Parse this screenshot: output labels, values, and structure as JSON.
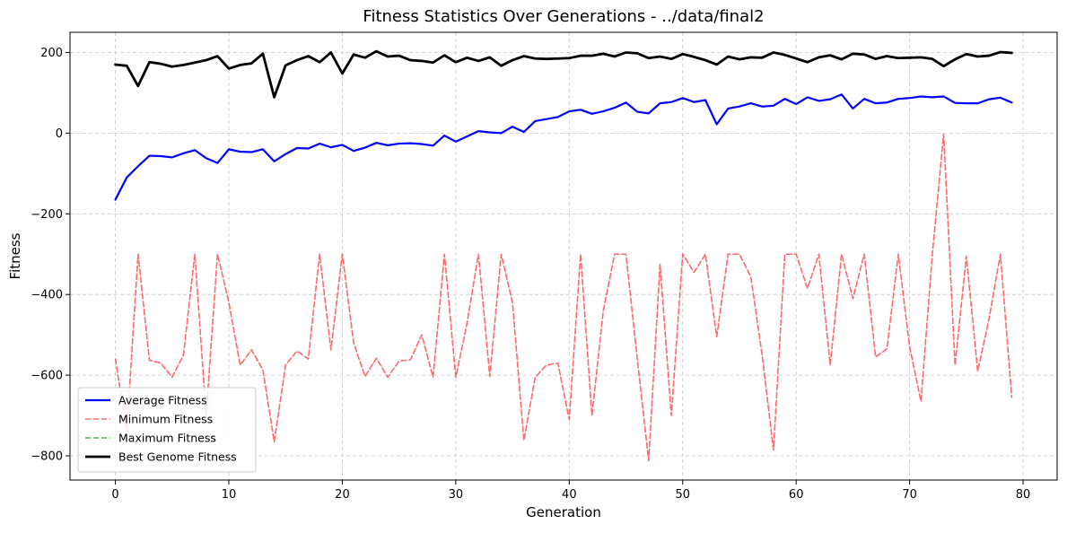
{
  "chart_data": {
    "type": "line",
    "title": "Fitness Statistics Over Generations - ../data/final2",
    "xlabel": "Generation",
    "ylabel": "Fitness",
    "xlim": [
      -4,
      83
    ],
    "ylim": [
      -860,
      250
    ],
    "xticks": [
      0,
      10,
      20,
      30,
      40,
      50,
      60,
      70,
      80
    ],
    "yticks": [
      -800,
      -600,
      -400,
      -200,
      0,
      200
    ],
    "grid": true,
    "legend_position": "bottom-left",
    "series": [
      {
        "name": "Average Fitness",
        "color": "#0000ff",
        "style": "solid",
        "values": [
          -165,
          -110,
          -82,
          -56,
          -57,
          -60,
          -50,
          -42,
          -62,
          -74,
          -40,
          -46,
          -47,
          -40,
          -70,
          -52,
          -37,
          -38,
          -26,
          -35,
          -29,
          -44,
          -36,
          -24,
          -30,
          -26,
          -25,
          -27,
          -31,
          -6,
          -21,
          -8,
          5,
          2,
          0,
          16,
          3,
          30,
          35,
          40,
          54,
          58,
          48,
          54,
          63,
          76,
          53,
          49,
          74,
          77,
          87,
          77,
          82,
          22,
          61,
          66,
          74,
          66,
          68,
          85,
          72,
          89,
          80,
          84,
          96,
          61,
          85,
          74,
          76,
          85,
          87,
          91,
          89,
          91,
          75,
          74,
          74,
          84,
          88,
          76
        ]
      },
      {
        "name": "Minimum Fitness",
        "color": "#ff4444",
        "style": "dashed",
        "values": [
          -560,
          -740,
          -300,
          -563,
          -570,
          -605,
          -550,
          -300,
          -700,
          -300,
          -420,
          -575,
          -537,
          -587,
          -765,
          -575,
          -540,
          -560,
          -300,
          -537,
          -300,
          -520,
          -603,
          -558,
          -605,
          -565,
          -562,
          -500,
          -605,
          -300,
          -605,
          -470,
          -300,
          -603,
          -300,
          -420,
          -762,
          -605,
          -575,
          -570,
          -710,
          -300,
          -700,
          -440,
          -300,
          -300,
          -560,
          -812,
          -325,
          -700,
          -300,
          -345,
          -300,
          -505,
          -300,
          -300,
          -355,
          -550,
          -785,
          -300,
          -300,
          -385,
          -300,
          -575,
          -300,
          -410,
          -300,
          -555,
          -535,
          -300,
          -530,
          -665,
          -300,
          -2,
          -575,
          -305,
          -590,
          -460,
          -300,
          -655
        ]
      },
      {
        "name": "Maximum Fitness",
        "color": "#2ca02c",
        "style": "dashed",
        "values": [
          170,
          167,
          117,
          176,
          172,
          165,
          169,
          175,
          181,
          191,
          160,
          169,
          173,
          197,
          89,
          168,
          181,
          191,
          176,
          200,
          148,
          195,
          187,
          203,
          190,
          192,
          181,
          179,
          175,
          193,
          176,
          187,
          179,
          188,
          167,
          181,
          191,
          185,
          184,
          185,
          186,
          192,
          192,
          197,
          190,
          200,
          198,
          186,
          190,
          184,
          196,
          189,
          181,
          170,
          190,
          183,
          188,
          187,
          200,
          194,
          185,
          176,
          188,
          193,
          183,
          197,
          195,
          184,
          191,
          186,
          187,
          188,
          184,
          166,
          183,
          196,
          190,
          192,
          201,
          199
        ]
      },
      {
        "name": "Best Genome Fitness",
        "color": "#000000",
        "style": "solid",
        "values": [
          170,
          167,
          117,
          176,
          172,
          165,
          169,
          175,
          181,
          191,
          160,
          169,
          173,
          197,
          89,
          168,
          181,
          191,
          176,
          200,
          148,
          195,
          187,
          203,
          190,
          192,
          181,
          179,
          175,
          193,
          176,
          187,
          179,
          188,
          167,
          181,
          191,
          185,
          184,
          185,
          186,
          192,
          192,
          197,
          190,
          200,
          198,
          186,
          190,
          184,
          196,
          189,
          181,
          170,
          190,
          183,
          188,
          187,
          200,
          194,
          185,
          176,
          188,
          193,
          183,
          197,
          195,
          184,
          191,
          186,
          187,
          188,
          184,
          166,
          183,
          196,
          190,
          192,
          201,
          199
        ]
      }
    ]
  }
}
